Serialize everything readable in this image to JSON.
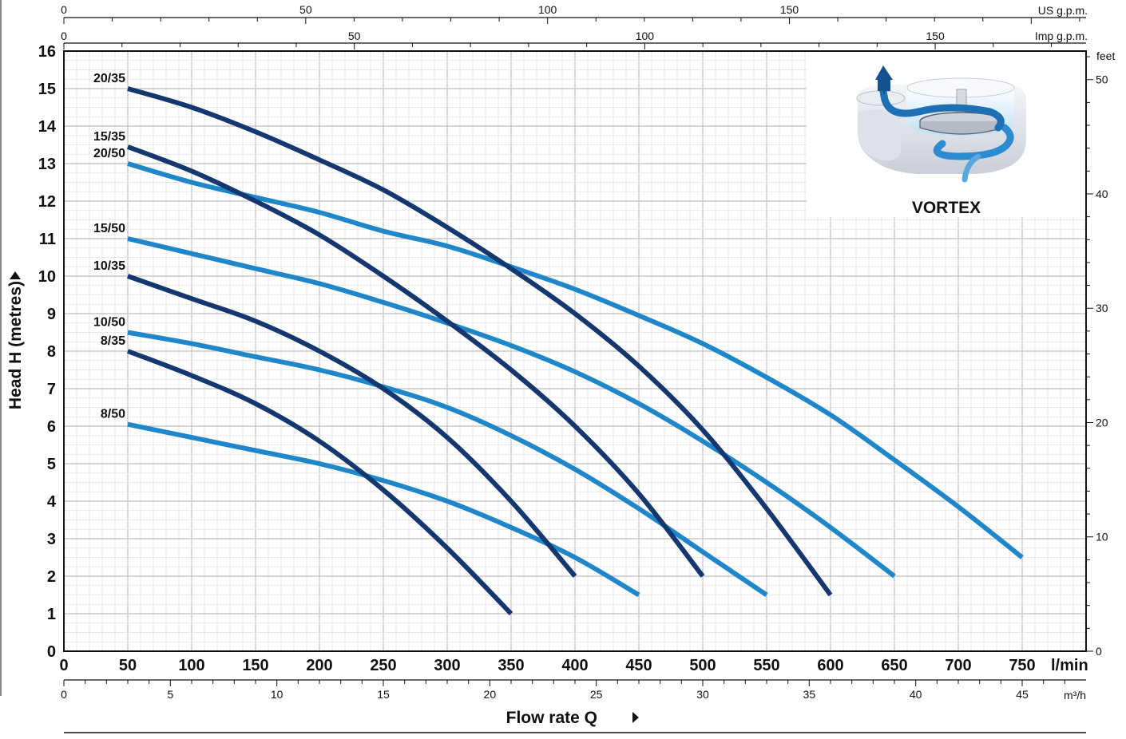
{
  "chart_data": {
    "type": "line",
    "xlabel": "Flow rate Q",
    "ylabel": "Head H  (metres)",
    "x_unit": "l/min",
    "xlim": [
      0,
      800
    ],
    "ylim": [
      0,
      16
    ],
    "x_ticks": [
      0,
      50,
      100,
      150,
      200,
      250,
      300,
      350,
      400,
      450,
      500,
      550,
      600,
      650,
      700,
      750
    ],
    "y_ticks": [
      0,
      1,
      2,
      3,
      4,
      5,
      6,
      7,
      8,
      9,
      10,
      11,
      12,
      13,
      14,
      15,
      16
    ],
    "grid": true,
    "secondary_axes": {
      "us_gpm": {
        "label": "US g.p.m.",
        "ticks": [
          0,
          50,
          100,
          150
        ]
      },
      "imp_gpm": {
        "label": "Imp g.p.m.",
        "ticks": [
          0,
          50,
          100,
          150
        ]
      },
      "m3h": {
        "label": "m³/h",
        "ticks": [
          0,
          5,
          10,
          15,
          20,
          25,
          30,
          35,
          40,
          45
        ]
      },
      "feet": {
        "label": "feet",
        "ticks": [
          0,
          10,
          20,
          30,
          40,
          50
        ]
      }
    },
    "series": [
      {
        "name": "20/35",
        "color": "#13376e",
        "x": [
          50,
          100,
          150,
          200,
          250,
          300,
          350,
          400,
          450,
          500,
          550,
          600
        ],
        "y": [
          15,
          14.5,
          13.85,
          13.1,
          12.3,
          11.3,
          10.2,
          9.0,
          7.6,
          5.9,
          3.8,
          1.5
        ]
      },
      {
        "name": "15/35",
        "color": "#13376e",
        "x": [
          50,
          100,
          150,
          200,
          250,
          300,
          350,
          400,
          450,
          500
        ],
        "y": [
          13.45,
          12.8,
          12.0,
          11.1,
          10.0,
          8.8,
          7.5,
          6.0,
          4.2,
          2.0
        ]
      },
      {
        "name": "20/50",
        "color": "#1f86c9",
        "x": [
          50,
          100,
          150,
          200,
          250,
          300,
          350,
          400,
          450,
          500,
          550,
          600,
          650,
          700,
          750
        ],
        "y": [
          13.0,
          12.5,
          12.1,
          11.7,
          11.2,
          10.8,
          10.25,
          9.65,
          8.95,
          8.2,
          7.3,
          6.3,
          5.1,
          3.85,
          2.5
        ]
      },
      {
        "name": "15/50",
        "color": "#1f86c9",
        "x": [
          50,
          100,
          150,
          200,
          250,
          300,
          350,
          400,
          450,
          500,
          550,
          600,
          650
        ],
        "y": [
          11.0,
          10.6,
          10.2,
          9.8,
          9.3,
          8.75,
          8.15,
          7.45,
          6.6,
          5.6,
          4.5,
          3.3,
          2.0
        ]
      },
      {
        "name": "10/35",
        "color": "#13376e",
        "x": [
          50,
          100,
          150,
          200,
          250,
          300,
          350,
          400
        ],
        "y": [
          10.0,
          9.4,
          8.8,
          8.0,
          7.0,
          5.7,
          4.0,
          2.0
        ]
      },
      {
        "name": "10/50",
        "color": "#1f86c9",
        "x": [
          50,
          100,
          150,
          200,
          250,
          300,
          350,
          400,
          450,
          500,
          550
        ],
        "y": [
          8.5,
          8.2,
          7.85,
          7.5,
          7.05,
          6.5,
          5.75,
          4.85,
          3.8,
          2.65,
          1.5
        ]
      },
      {
        "name": "8/35",
        "color": "#13376e",
        "x": [
          50,
          100,
          150,
          200,
          250,
          300,
          350
        ],
        "y": [
          8.0,
          7.35,
          6.6,
          5.6,
          4.3,
          2.75,
          1.0
        ]
      },
      {
        "name": "8/50",
        "color": "#1f86c9",
        "x": [
          50,
          100,
          150,
          200,
          250,
          300,
          350,
          400,
          450
        ],
        "y": [
          6.05,
          5.7,
          5.35,
          5.0,
          4.55,
          4.0,
          3.3,
          2.5,
          1.5
        ]
      }
    ]
  },
  "inset": {
    "label": "VORTEX"
  },
  "colors": {
    "dark_curve": "#13376e",
    "light_curve": "#1f86c9",
    "grid": "#c8c8c8",
    "grid_minor": "#e1e1e1"
  },
  "icons": {
    "inset_illustration": "vortex-impeller-illustration",
    "arrow": "triangle-right-icon"
  }
}
